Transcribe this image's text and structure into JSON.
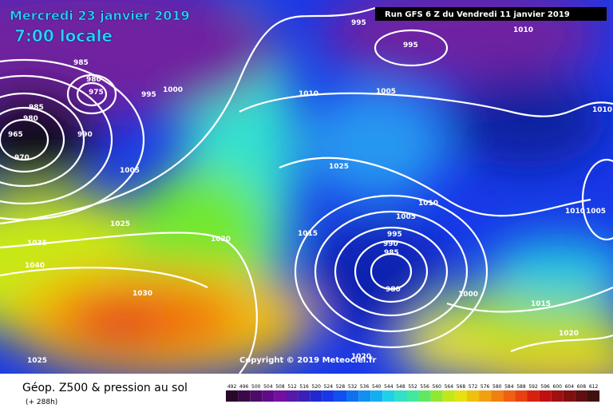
{
  "header": {
    "valid_date": "Mercredi 23 janvier 2019",
    "local_time": "7:00 locale",
    "run": "Run GFS 6 Z du Vendredi 11 janvier 2019"
  },
  "footer": {
    "title": "Géop. Z500 & pression au sol",
    "lead": "(+ 288h)",
    "copyright": "Copyright © 2019 Meteociel.fr"
  },
  "colorbar": [
    492,
    496,
    500,
    504,
    508,
    512,
    516,
    520,
    524,
    528,
    532,
    536,
    540,
    544,
    548,
    552,
    556,
    560,
    564,
    568,
    572,
    576,
    580,
    584,
    588,
    592,
    596,
    600,
    604,
    608,
    612
  ],
  "isobars": [
    "995",
    "1010",
    "995",
    "985",
    "980",
    "975",
    "1000",
    "995",
    "1005",
    "1010",
    "1010",
    "985",
    "980",
    "965",
    "970",
    "990",
    "1005",
    "1025",
    "1010",
    "1005",
    "1010",
    "1005",
    "1025",
    "1020",
    "1015",
    "995",
    "990",
    "985",
    "1035",
    "1040",
    "980",
    "1000",
    "1015",
    "1030",
    "1020",
    "1025",
    "1020"
  ]
}
